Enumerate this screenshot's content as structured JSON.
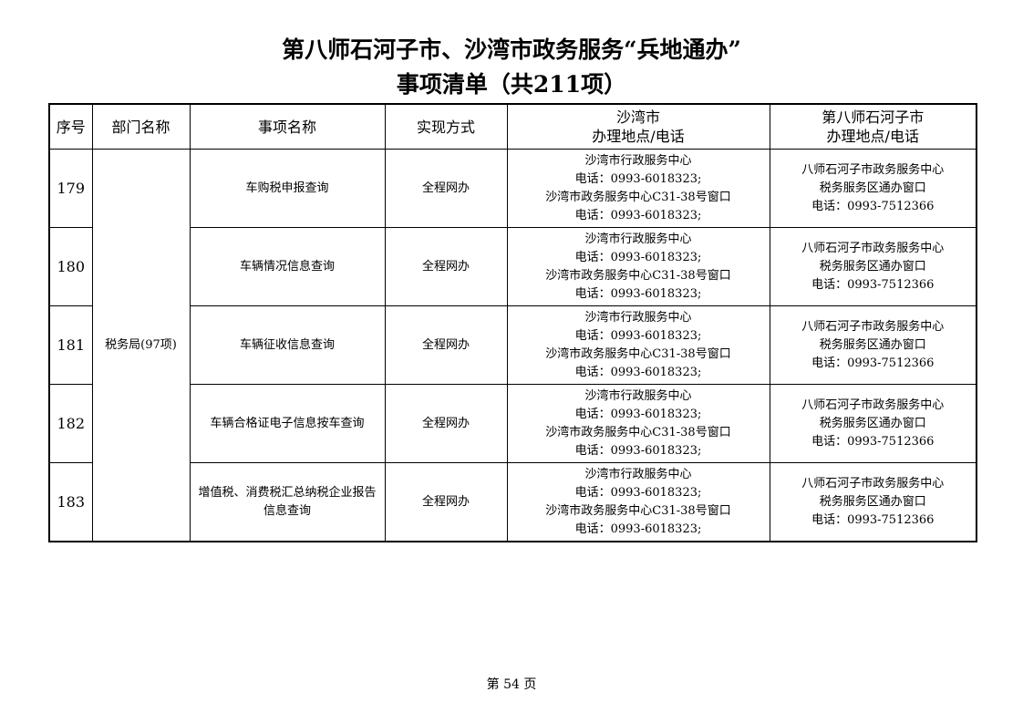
{
  "title_line1": "第八师石河子市、沙湾市政务服务“兵地通办”",
  "title_line2": "事项清单（共211项）",
  "headers": {
    "index": "序号",
    "department": "部门名称",
    "item": "事项名称",
    "method": "实现方式",
    "shawan_1": "沙湾市",
    "shawan_2": "办理地点/电话",
    "shihezi_1": "第八师石河子市",
    "shihezi_2": "办理地点/电话"
  },
  "department": "税务局(97项)",
  "rows": [
    {
      "index": "179",
      "item": "车购税申报查询",
      "method": "全程网办",
      "shawan": [
        "沙湾市行政服务中心",
        "电话：0993-6018323;",
        "沙湾市政务服务中心C31-38号窗口",
        "电话：0993-6018323;"
      ],
      "shihezi": [
        "八师石河子市政务服务中心",
        "税务服务区通办窗口",
        "电话：0993-7512366"
      ]
    },
    {
      "index": "180",
      "item": "车辆情况信息查询",
      "method": "全程网办",
      "shawan": [
        "沙湾市行政服务中心",
        "电话：0993-6018323;",
        "沙湾市政务服务中心C31-38号窗口",
        "电话：0993-6018323;"
      ],
      "shihezi": [
        "八师石河子市政务服务中心",
        "税务服务区通办窗口",
        "电话：0993-7512366"
      ]
    },
    {
      "index": "181",
      "item": "车辆征收信息查询",
      "method": "全程网办",
      "shawan": [
        "沙湾市行政服务中心",
        "电话：0993-6018323;",
        "沙湾市政务服务中心C31-38号窗口",
        "电话：0993-6018323;"
      ],
      "shihezi": [
        "八师石河子市政务服务中心",
        "税务服务区通办窗口",
        "电话：0993-7512366"
      ]
    },
    {
      "index": "182",
      "item": "车辆合格证电子信息按车查询",
      "method": "全程网办",
      "shawan": [
        "沙湾市行政服务中心",
        "电话：0993-6018323;",
        "沙湾市政务服务中心C31-38号窗口",
        "电话：0993-6018323;"
      ],
      "shihezi": [
        "八师石河子市政务服务中心",
        "税务服务区通办窗口",
        "电话：0993-7512366"
      ]
    },
    {
      "index": "183",
      "item": "增值税、消费税汇总纳税企业报告信息查询",
      "method": "全程网办",
      "shawan": [
        "沙湾市行政服务中心",
        "电话：0993-6018323;",
        "沙湾市政务服务中心C31-38号窗口",
        "电话：0993-6018323;"
      ],
      "shihezi": [
        "八师石河子市政务服务中心",
        "税务服务区通办窗口",
        "电话：0993-7512366"
      ]
    }
  ],
  "footer": "第 54 页"
}
